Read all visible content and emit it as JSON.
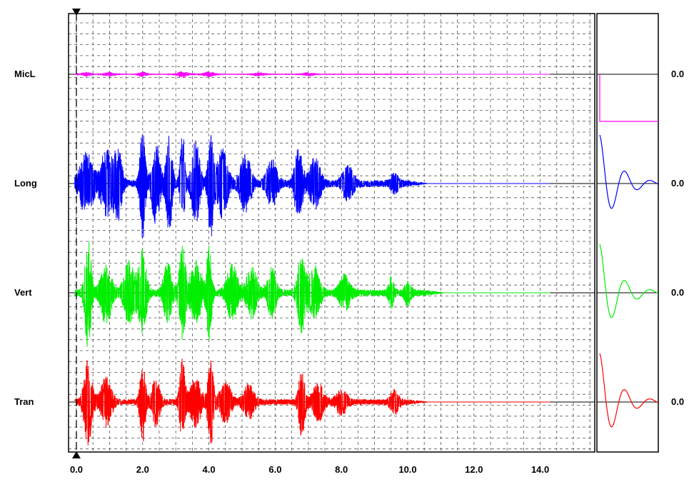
{
  "chart_data": {
    "type": "line",
    "title": "",
    "xlabel": "",
    "ylabel": "",
    "xlim": [
      -0.2,
      15.6
    ],
    "x_ticks": [
      "0.0",
      "2.0",
      "4.0",
      "6.0",
      "8.0",
      "10.0",
      "12.0",
      "14.0"
    ],
    "x_tick_values": [
      0,
      2,
      4,
      6,
      8,
      10,
      12,
      14
    ],
    "record_end": 14.3,
    "grid": true,
    "cursor_time": 0.0,
    "channels": [
      {
        "name": "MicL",
        "color": "#ff00ff",
        "value_label": "0.0",
        "amplitude": 0.06,
        "bursts": [
          [
            0.3,
            0.15,
            0.6
          ],
          [
            1.0,
            0.2,
            0.6
          ],
          [
            2.0,
            0.15,
            0.8
          ],
          [
            3.2,
            0.2,
            0.9
          ],
          [
            4.0,
            0.2,
            0.8
          ],
          [
            5.5,
            0.2,
            0.5
          ],
          [
            7.0,
            0.2,
            0.5
          ]
        ],
        "decay_end": 10.0,
        "response": "step"
      },
      {
        "name": "Long",
        "color": "#0000ff",
        "value_label": "0.0",
        "amplitude": 1.0,
        "bursts": [
          [
            0.3,
            0.25,
            0.55
          ],
          [
            0.9,
            0.2,
            0.6
          ],
          [
            1.25,
            0.15,
            0.65
          ],
          [
            2.0,
            0.1,
            1.0
          ],
          [
            2.4,
            0.15,
            0.75
          ],
          [
            2.8,
            0.12,
            0.85
          ],
          [
            3.2,
            0.08,
            1.0
          ],
          [
            3.6,
            0.15,
            0.75
          ],
          [
            4.05,
            0.1,
            0.95
          ],
          [
            4.4,
            0.2,
            0.6
          ],
          [
            5.1,
            0.2,
            0.5
          ],
          [
            5.9,
            0.2,
            0.4
          ],
          [
            6.7,
            0.15,
            0.65
          ],
          [
            7.2,
            0.2,
            0.45
          ],
          [
            8.2,
            0.2,
            0.3
          ],
          [
            9.6,
            0.15,
            0.15
          ]
        ],
        "decay_end": 10.0,
        "response": "damped"
      },
      {
        "name": "Vert",
        "color": "#00ee00",
        "value_label": "0.0",
        "amplitude": 1.0,
        "bursts": [
          [
            0.35,
            0.12,
            1.0
          ],
          [
            0.9,
            0.2,
            0.55
          ],
          [
            1.6,
            0.2,
            0.55
          ],
          [
            2.0,
            0.15,
            0.75
          ],
          [
            2.75,
            0.15,
            0.55
          ],
          [
            3.2,
            0.12,
            0.85
          ],
          [
            3.6,
            0.2,
            0.55
          ],
          [
            4.0,
            0.1,
            0.85
          ],
          [
            4.7,
            0.2,
            0.5
          ],
          [
            5.3,
            0.2,
            0.45
          ],
          [
            5.9,
            0.15,
            0.45
          ],
          [
            6.8,
            0.15,
            0.7
          ],
          [
            7.2,
            0.2,
            0.45
          ],
          [
            8.1,
            0.2,
            0.3
          ],
          [
            9.5,
            0.1,
            0.25
          ],
          [
            10.0,
            0.12,
            0.2
          ]
        ],
        "decay_end": 10.5,
        "response": "damped"
      },
      {
        "name": "Tran",
        "color": "#ff0000",
        "value_label": "0.0",
        "amplitude": 0.85,
        "bursts": [
          [
            0.35,
            0.15,
            0.9
          ],
          [
            0.9,
            0.2,
            0.5
          ],
          [
            2.0,
            0.1,
            0.85
          ],
          [
            2.4,
            0.15,
            0.5
          ],
          [
            3.2,
            0.1,
            0.9
          ],
          [
            3.6,
            0.2,
            0.5
          ],
          [
            4.05,
            0.1,
            0.95
          ],
          [
            4.5,
            0.2,
            0.45
          ],
          [
            5.2,
            0.2,
            0.35
          ],
          [
            6.8,
            0.12,
            0.75
          ],
          [
            7.3,
            0.2,
            0.4
          ],
          [
            8.0,
            0.2,
            0.25
          ],
          [
            9.6,
            0.15,
            0.25
          ]
        ],
        "decay_end": 10.0,
        "response": "damped"
      }
    ]
  }
}
